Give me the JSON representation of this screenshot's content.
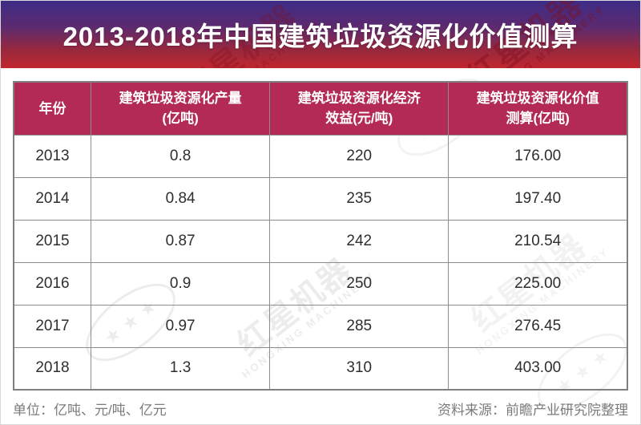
{
  "title": "2013-2018年中国建筑垃圾资源化价值测算",
  "table": {
    "headers": [
      "年份",
      "建筑垃圾资源化产量\n(亿吨)",
      "建筑垃圾资源化经济\n效益(元/吨)",
      "建筑垃圾资源化价值\n测算(亿吨)"
    ],
    "rows": [
      [
        "2013",
        "0.8",
        "220",
        "176.00"
      ],
      [
        "2014",
        "0.84",
        "235",
        "197.40"
      ],
      [
        "2015",
        "0.87",
        "242",
        "210.54"
      ],
      [
        "2016",
        "0.9",
        "250",
        "225.00"
      ],
      [
        "2017",
        "0.97",
        "285",
        "276.45"
      ],
      [
        "2018",
        "1.3",
        "310",
        "403.00"
      ]
    ]
  },
  "footer": {
    "units": "单位：亿吨、元/吨、亿元",
    "source": "资料来源：前瞻产业研究院整理"
  },
  "watermark": {
    "brand": "红星机器",
    "brand_en": "HONGXING MACHINERY",
    "stars": "★★★"
  },
  "colors": {
    "banner_gradient_top": "#3d2c87",
    "banner_gradient_bottom": "#c1272d",
    "table_header_bg": "#b32b55",
    "border": "#8c8c8c",
    "body_text": "#2e2e2e",
    "note_text": "#7b7b7b"
  },
  "chart_data": {
    "type": "table",
    "title": "2013-2018年中国建筑垃圾资源化价值测算",
    "columns": [
      "年份",
      "建筑垃圾资源化产量(亿吨)",
      "建筑垃圾资源化经济效益(元/吨)",
      "建筑垃圾资源化价值测算(亿吨)"
    ],
    "rows": [
      [
        2013,
        0.8,
        220,
        176.0
      ],
      [
        2014,
        0.84,
        235,
        197.4
      ],
      [
        2015,
        0.87,
        242,
        210.54
      ],
      [
        2016,
        0.9,
        250,
        225.0
      ],
      [
        2017,
        0.97,
        285,
        276.45
      ],
      [
        2018,
        1.3,
        310,
        403.0
      ]
    ],
    "units_note": "单位：亿吨、元/吨、亿元",
    "source_note": "资料来源：前瞻产业研究院整理"
  }
}
